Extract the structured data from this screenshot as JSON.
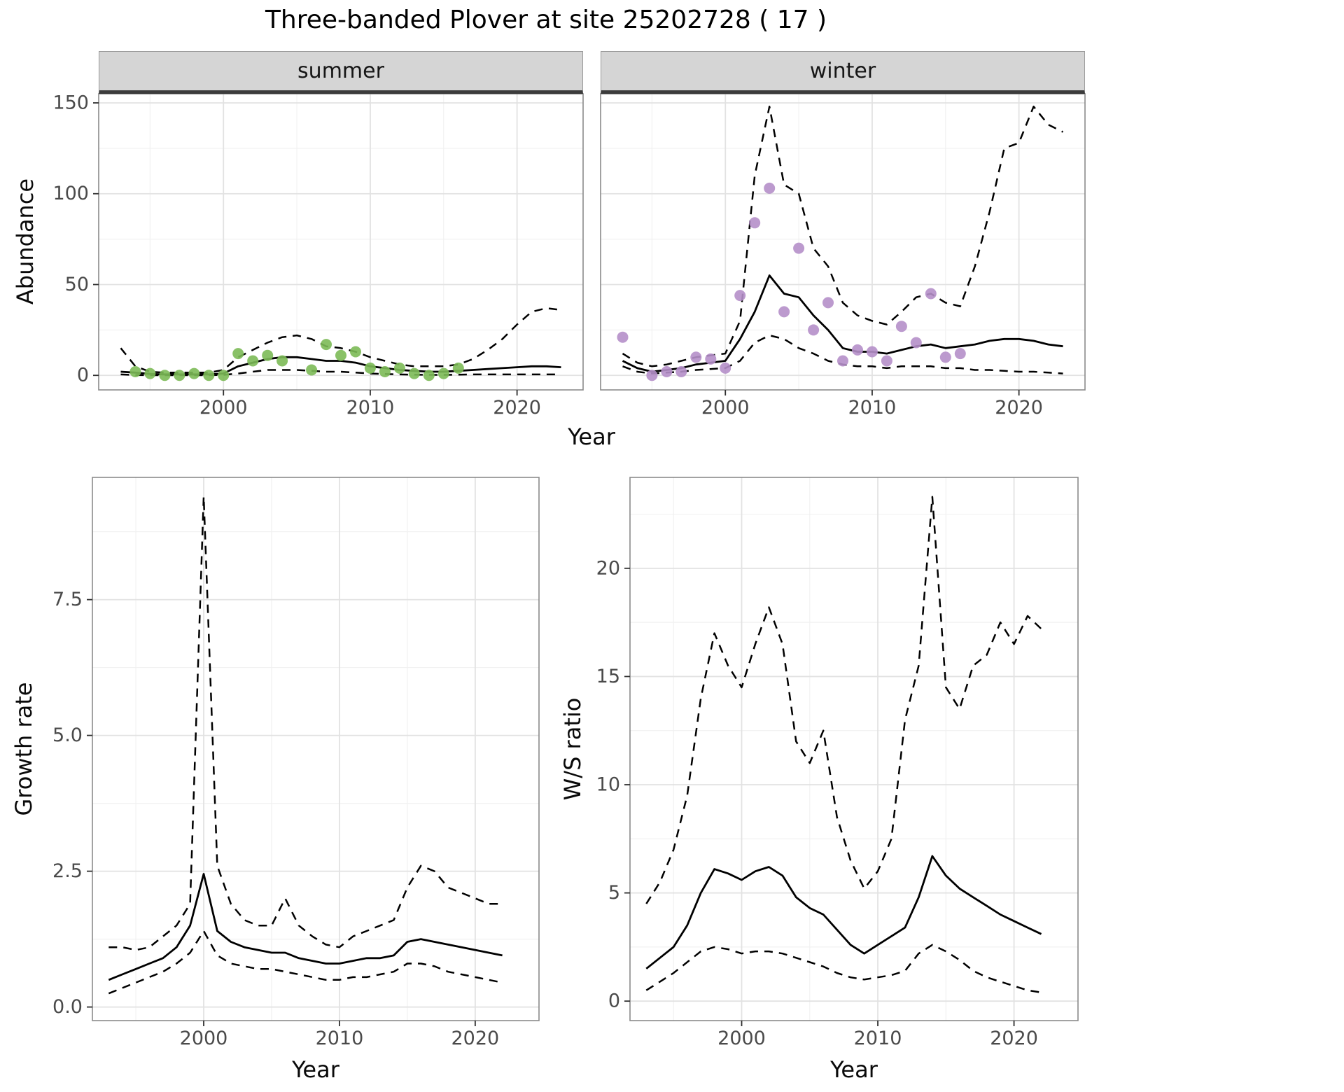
{
  "title": "Three-banded Plover at site 25202728 ( 17 )",
  "colors": {
    "observed_summer": "#7cba57",
    "observed_winter": "#b58fc9",
    "fit_line": "#000000",
    "strip_background": "#d5d5d5"
  },
  "chart_data": [
    {
      "id": "abundance_summer",
      "type": "line",
      "facet": "summer",
      "xlabel": "Year",
      "ylabel": "Abundance",
      "xlim": [
        1991.5,
        2024.5
      ],
      "ylim": [
        -8,
        155
      ],
      "xticks": [
        2000,
        2010,
        2020
      ],
      "xtick_labels": [
        "2000",
        "2010",
        "2020"
      ],
      "yticks": [
        0,
        50,
        100,
        150
      ],
      "ytick_labels": [
        "0",
        "50",
        "100",
        "150"
      ],
      "line_color": "#000000",
      "x": [
        1993,
        1994,
        1995,
        1996,
        1997,
        1998,
        1999,
        2000,
        2001,
        2002,
        2003,
        2004,
        2005,
        2006,
        2007,
        2008,
        2009,
        2010,
        2011,
        2012,
        2013,
        2014,
        2015,
        2016,
        2017,
        2018,
        2019,
        2020,
        2021,
        2022,
        2023
      ],
      "series": [
        {
          "name": "ci_upper",
          "style": "dashed",
          "values": [
            15,
            5,
            2,
            1.5,
            1.5,
            1.5,
            1.5,
            3,
            10,
            14,
            18,
            21,
            22,
            20,
            16,
            15,
            13,
            10,
            8,
            6,
            5,
            5,
            5,
            6,
            9,
            14,
            20,
            28,
            35,
            37,
            36
          ]
        },
        {
          "name": "ci_lower",
          "style": "dashed",
          "values": [
            0.5,
            0.2,
            0.1,
            0.1,
            0.1,
            0.1,
            0.1,
            0.3,
            1,
            2,
            3,
            3,
            3,
            2.5,
            2,
            2,
            1.5,
            1,
            0.8,
            0.5,
            0.4,
            0.3,
            0.3,
            0.4,
            0.5,
            0.5,
            0.5,
            0.5,
            0.5,
            0.5,
            0.5
          ]
        },
        {
          "name": "fit_median",
          "style": "solid",
          "values": [
            2,
            1.5,
            0.8,
            0.5,
            0.5,
            0.5,
            0.5,
            1,
            5,
            7,
            9,
            10,
            10,
            9,
            8,
            8,
            7,
            5,
            4,
            3,
            2.5,
            2,
            2,
            2.5,
            3,
            3.5,
            4,
            4.5,
            5,
            5,
            4.5
          ]
        }
      ],
      "points": {
        "name": "observed_counts",
        "color": "#7cba57",
        "x": [
          1994,
          1995,
          1996,
          1997,
          1998,
          1999,
          2000,
          2001,
          2002,
          2003,
          2004,
          2006,
          2007,
          2008,
          2009,
          2010,
          2011,
          2012,
          2013,
          2014,
          2015,
          2016
        ],
        "y": [
          2,
          1,
          0,
          0,
          1,
          0,
          0,
          12,
          8,
          11,
          8,
          3,
          17,
          11,
          13,
          4,
          2,
          4,
          1,
          0,
          1,
          4
        ]
      }
    },
    {
      "id": "abundance_winter",
      "type": "line",
      "facet": "winter",
      "xlabel": "Year",
      "ylabel": "Abundance",
      "xlim": [
        1991.5,
        2024.5
      ],
      "ylim": [
        -8,
        155
      ],
      "xticks": [
        2000,
        2010,
        2020
      ],
      "xtick_labels": [
        "2000",
        "2010",
        "2020"
      ],
      "yticks": [
        0,
        50,
        100,
        150
      ],
      "ytick_labels": [
        "0",
        "50",
        "100",
        "150"
      ],
      "line_color": "#000000",
      "x": [
        1993,
        1994,
        1995,
        1996,
        1997,
        1998,
        1999,
        2000,
        2001,
        2002,
        2003,
        2004,
        2005,
        2006,
        2007,
        2008,
        2009,
        2010,
        2011,
        2012,
        2013,
        2014,
        2015,
        2016,
        2017,
        2018,
        2019,
        2020,
        2021,
        2022,
        2023
      ],
      "series": [
        {
          "name": "ci_upper",
          "style": "dashed",
          "values": [
            12,
            7,
            5,
            6,
            8,
            10,
            11,
            12,
            30,
            110,
            148,
            105,
            100,
            70,
            60,
            40,
            33,
            30,
            28,
            35,
            43,
            45,
            40,
            38,
            60,
            90,
            125,
            128,
            148,
            138,
            134
          ]
        },
        {
          "name": "ci_lower",
          "style": "dashed",
          "values": [
            5,
            2,
            1,
            1.5,
            2,
            3,
            3.5,
            4,
            8,
            18,
            22,
            20,
            15,
            12,
            8,
            6,
            5,
            5,
            4,
            5,
            5,
            5,
            4,
            4,
            3,
            3,
            2.5,
            2,
            2,
            1.5,
            1
          ]
        },
        {
          "name": "fit_median",
          "style": "solid",
          "values": [
            8,
            4,
            2,
            3,
            4,
            6,
            7,
            8,
            20,
            35,
            55,
            45,
            43,
            33,
            25,
            15,
            13,
            13,
            12,
            14,
            16,
            17,
            15,
            16,
            17,
            19,
            20,
            20,
            19,
            17,
            16
          ]
        }
      ],
      "points": {
        "name": "observed_counts",
        "color": "#b58fc9",
        "x": [
          1993,
          1995,
          1996,
          1997,
          1998,
          1999,
          2000,
          2001,
          2002,
          2003,
          2004,
          2005,
          2006,
          2007,
          2008,
          2009,
          2010,
          2011,
          2012,
          2013,
          2014,
          2015,
          2016
        ],
        "y": [
          21,
          0,
          2,
          2,
          10,
          9,
          4,
          44,
          84,
          103,
          35,
          70,
          25,
          40,
          8,
          14,
          13,
          8,
          27,
          18,
          45,
          10,
          12
        ]
      }
    },
    {
      "id": "growth_rate",
      "type": "line",
      "facet": null,
      "xlabel": "Year",
      "ylabel": "Growth rate",
      "xlim": [
        1991.8,
        2024.7
      ],
      "ylim": [
        -0.25,
        9.75
      ],
      "xticks": [
        2000,
        2010,
        2020
      ],
      "xtick_labels": [
        "2000",
        "2010",
        "2020"
      ],
      "yticks": [
        0,
        2.5,
        5,
        7.5
      ],
      "ytick_labels": [
        "0.0",
        "2.5",
        "5.0",
        "7.5"
      ],
      "line_color": "#000000",
      "x": [
        1993,
        1994,
        1995,
        1996,
        1997,
        1998,
        1999,
        2000,
        2001,
        2002,
        2003,
        2004,
        2005,
        2006,
        2007,
        2008,
        2009,
        2010,
        2011,
        2012,
        2013,
        2014,
        2015,
        2016,
        2017,
        2018,
        2019,
        2020,
        2021,
        2022
      ],
      "series": [
        {
          "name": "ci_upper",
          "style": "dashed",
          "values": [
            1.1,
            1.1,
            1.05,
            1.1,
            1.3,
            1.5,
            1.9,
            9.4,
            2.6,
            1.9,
            1.6,
            1.5,
            1.5,
            2,
            1.5,
            1.3,
            1.15,
            1.1,
            1.3,
            1.4,
            1.5,
            1.6,
            2.2,
            2.6,
            2.5,
            2.2,
            2.1,
            2,
            1.9,
            1.9
          ]
        },
        {
          "name": "ci_lower",
          "style": "dashed",
          "values": [
            0.25,
            0.35,
            0.45,
            0.55,
            0.65,
            0.8,
            1,
            1.4,
            0.95,
            0.8,
            0.75,
            0.7,
            0.7,
            0.65,
            0.6,
            0.55,
            0.5,
            0.5,
            0.55,
            0.55,
            0.6,
            0.65,
            0.8,
            0.8,
            0.75,
            0.65,
            0.6,
            0.55,
            0.5,
            0.45
          ]
        },
        {
          "name": "fit_median",
          "style": "solid",
          "values": [
            0.5,
            0.6,
            0.7,
            0.8,
            0.9,
            1.1,
            1.5,
            2.45,
            1.4,
            1.2,
            1.1,
            1.05,
            1,
            1,
            0.9,
            0.85,
            0.8,
            0.8,
            0.85,
            0.9,
            0.9,
            0.95,
            1.2,
            1.25,
            1.2,
            1.15,
            1.1,
            1.05,
            1,
            0.95
          ]
        }
      ],
      "points": null
    },
    {
      "id": "ws_ratio",
      "type": "line",
      "facet": null,
      "xlabel": "Year",
      "ylabel": "W/S ratio",
      "xlim": [
        1991.8,
        2024.7
      ],
      "ylim": [
        -0.9,
        24.2
      ],
      "xticks": [
        2000,
        2010,
        2020
      ],
      "xtick_labels": [
        "2000",
        "2010",
        "2020"
      ],
      "yticks": [
        0,
        5,
        10,
        15,
        20
      ],
      "ytick_labels": [
        "0",
        "5",
        "10",
        "15",
        "20"
      ],
      "line_color": "#000000",
      "x": [
        1993,
        1994,
        1995,
        1996,
        1997,
        1998,
        1999,
        2000,
        2001,
        2002,
        2003,
        2004,
        2005,
        2006,
        2007,
        2008,
        2009,
        2010,
        2011,
        2012,
        2013,
        2014,
        2015,
        2016,
        2017,
        2018,
        2019,
        2020,
        2021,
        2022
      ],
      "series": [
        {
          "name": "ci_upper",
          "style": "dashed",
          "values": [
            4.5,
            5.5,
            7,
            9.5,
            14,
            17,
            15.5,
            14.5,
            16.5,
            18.2,
            16.5,
            12,
            11,
            12.5,
            8.5,
            6.5,
            5.2,
            6,
            7.5,
            13,
            15.5,
            23.3,
            14.5,
            13.5,
            15.5,
            16,
            17.5,
            16.5,
            17.8,
            17.2
          ]
        },
        {
          "name": "ci_lower",
          "style": "dashed",
          "values": [
            0.5,
            0.9,
            1.3,
            1.8,
            2.3,
            2.5,
            2.4,
            2.2,
            2.3,
            2.3,
            2.2,
            2,
            1.8,
            1.6,
            1.3,
            1.1,
            1,
            1.1,
            1.2,
            1.4,
            2.2,
            2.6,
            2.3,
            1.9,
            1.4,
            1.1,
            0.9,
            0.7,
            0.5,
            0.4
          ]
        },
        {
          "name": "fit_median",
          "style": "solid",
          "values": [
            1.5,
            2,
            2.5,
            3.5,
            5,
            6.1,
            5.9,
            5.6,
            6,
            6.2,
            5.8,
            4.8,
            4.3,
            4,
            3.3,
            2.6,
            2.2,
            2.6,
            3,
            3.4,
            4.8,
            6.7,
            5.8,
            5.2,
            4.8,
            4.4,
            4,
            3.7,
            3.4,
            3.1
          ]
        }
      ],
      "points": null
    }
  ]
}
